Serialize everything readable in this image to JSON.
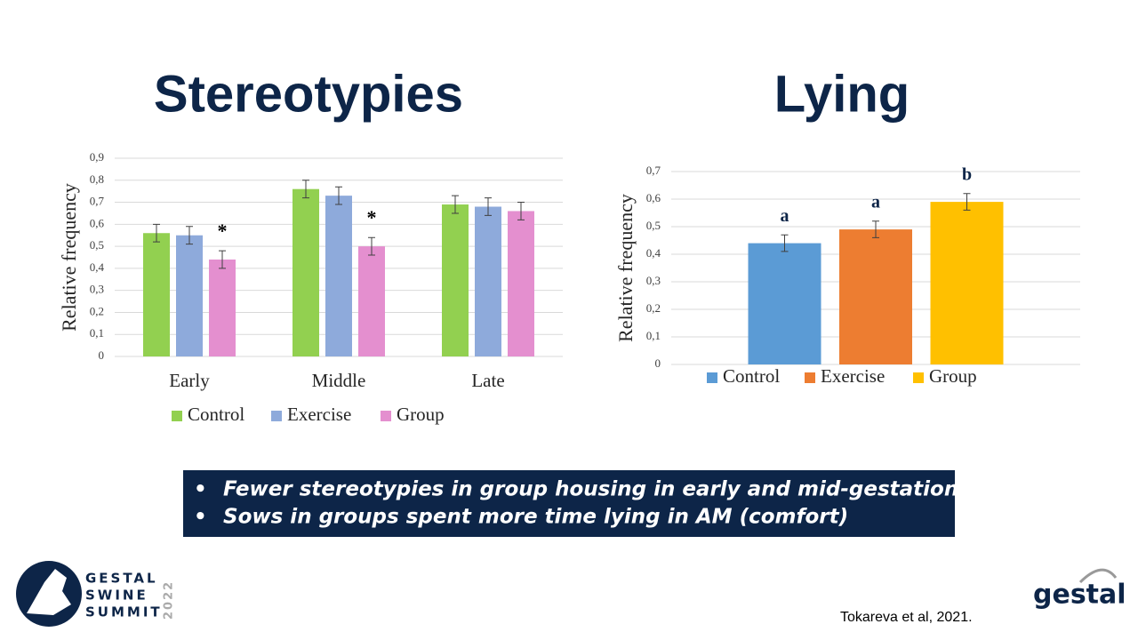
{
  "chart_data": [
    {
      "type": "bar",
      "title": "Stereotypies",
      "y_label": "Relative frequency",
      "categories": [
        "Early",
        "Middle",
        "Late"
      ],
      "series": [
        {
          "name": "Control",
          "color": "#92d050",
          "values": [
            0.56,
            0.76,
            0.69
          ],
          "errors": [
            0.04,
            0.04,
            0.04
          ]
        },
        {
          "name": "Exercise",
          "color": "#8eaadb",
          "values": [
            0.55,
            0.73,
            0.68
          ],
          "errors": [
            0.04,
            0.04,
            0.04
          ]
        },
        {
          "name": "Group",
          "color": "#e48fcf",
          "values": [
            0.44,
            0.5,
            0.66
          ],
          "errors": [
            0.04,
            0.04,
            0.04
          ],
          "annotations": [
            "*",
            "*",
            null
          ]
        }
      ],
      "ylim": [
        0,
        0.9
      ],
      "yticks": [
        0,
        {
          "value": 0.1,
          "label": "0,1"
        },
        {
          "value": 0.2,
          "label": "0,2"
        },
        {
          "value": 0.3,
          "label": "0,3"
        },
        {
          "value": 0.4,
          "label": "0,4"
        },
        {
          "value": 0.5,
          "label": "0,5"
        },
        {
          "value": 0.6,
          "label": "0,6"
        },
        {
          "value": 0.7,
          "label": "0,7"
        },
        {
          "value": 0.8,
          "label": "0,8"
        },
        {
          "value": 0.9,
          "label": "0,9"
        }
      ],
      "grid": true,
      "legend": "bottom"
    },
    {
      "type": "bar",
      "title": "Lying",
      "y_label": "Relative frequency",
      "categories": [
        null
      ],
      "series": [
        {
          "name": "Control",
          "color": "#5b9bd5",
          "values": [
            0.44
          ],
          "errors": [
            0.03
          ],
          "annotations": [
            "a"
          ]
        },
        {
          "name": "Exercise",
          "color": "#ed7d31",
          "values": [
            0.49
          ],
          "errors": [
            0.03
          ],
          "annotations": [
            "a"
          ]
        },
        {
          "name": "Group",
          "color": "#ffc000",
          "values": [
            0.59
          ],
          "errors": [
            0.03
          ],
          "annotations": [
            "b"
          ]
        }
      ],
      "ylim": [
        0,
        0.7
      ],
      "yticks": [
        0,
        {
          "value": 0.1,
          "label": "0,1"
        },
        {
          "value": 0.2,
          "label": "0,2"
        },
        {
          "value": 0.3,
          "label": "0,3"
        },
        {
          "value": 0.4,
          "label": "0,4"
        },
        {
          "value": 0.5,
          "label": "0,5"
        },
        {
          "value": 0.6,
          "label": "0,6"
        },
        {
          "value": 0.7,
          "label": "0,7"
        }
      ],
      "grid": true,
      "legend": "bottom"
    }
  ],
  "summary": {
    "bullets": [
      "Fewer stereotypies in group housing in early and mid-gestation",
      "Sows in groups spent more time lying in AM (comfort)"
    ]
  },
  "citation": "Tokareva et al, 2021.",
  "logo": {
    "lines": [
      "GESTAL",
      "SWINE",
      "SUMMIT"
    ],
    "year": "2022",
    "brand": "gestal"
  }
}
